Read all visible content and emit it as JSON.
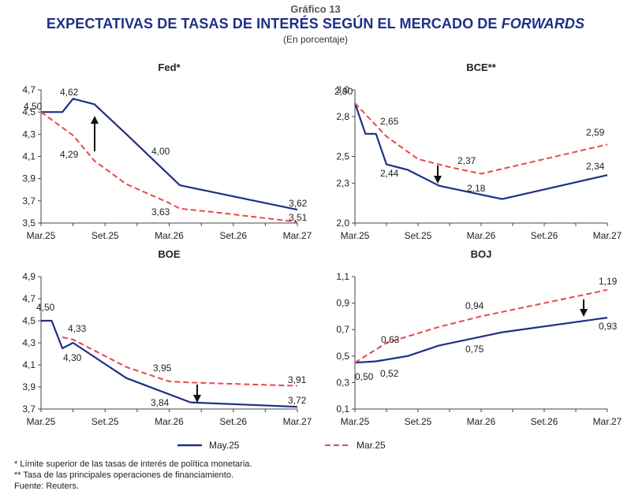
{
  "header": {
    "kicker": "Gráfico 13",
    "title_main": "EXPECTATIVAS DE TASAS DE INTERÉS SEGÚN EL MERCADO DE ",
    "title_italic": "FORWARDS",
    "subtitle": "(En porcentaje)"
  },
  "colors": {
    "may25": "#1f2f86",
    "mar25": "#e8474f",
    "axis": "#444444"
  },
  "legend": {
    "may25": "May.25",
    "mar25": "Mar.25"
  },
  "footnotes": {
    "note1": "* Límite superior de las tasas de interés de política monetaria.",
    "note2": "** Tasa de las principales operaciones de financiamiento.",
    "source": "Fuente: Reuters."
  },
  "chart_data": [
    {
      "type": "line",
      "title": "Fed*",
      "x_ticks": [
        "Mar.25",
        "Set.25",
        "Mar.26",
        "Set.26",
        "Mar.27"
      ],
      "x_range": [
        0,
        24
      ],
      "ylim": [
        3.5,
        4.7
      ],
      "y_ticks": [
        "3,5",
        "3,7",
        "3,9",
        "4,1",
        "4,3",
        "4,5",
        "4,7"
      ],
      "series": [
        {
          "name": "May.25",
          "x": [
            0,
            2,
            3,
            5,
            8,
            13,
            24
          ],
          "y": [
            4.5,
            4.5,
            4.62,
            4.57,
            4.3,
            3.84,
            3.62
          ]
        },
        {
          "name": "Mar.25",
          "x": [
            0,
            3,
            5,
            8,
            12,
            13,
            16,
            24
          ],
          "y": [
            4.5,
            4.29,
            4.06,
            3.85,
            3.68,
            3.63,
            3.6,
            3.51
          ]
        }
      ],
      "labels": [
        "4,50",
        "4,62",
        "4,29",
        "4,00",
        "3,62",
        "3,63",
        "3,51"
      ],
      "arrow": "up"
    },
    {
      "type": "line",
      "title": "BCE**",
      "x_ticks": [
        "Mar.25",
        "Set.25",
        "Mar.26",
        "Set.26",
        "Mar.27"
      ],
      "x_range": [
        0,
        24
      ],
      "ylim": [
        2.0,
        3.0
      ],
      "y_ticks": [
        "2,0",
        "2,3",
        "2,5",
        "2,8",
        "3,0"
      ],
      "series": [
        {
          "name": "May.25",
          "x": [
            0,
            1,
            2,
            3,
            5,
            8,
            14,
            24
          ],
          "y": [
            2.9,
            2.67,
            2.67,
            2.44,
            2.4,
            2.28,
            2.18,
            2.36
          ]
        },
        {
          "name": "Mar.25",
          "x": [
            0,
            3,
            6,
            9,
            12,
            24
          ],
          "y": [
            2.9,
            2.65,
            2.48,
            2.42,
            2.37,
            2.59
          ]
        }
      ],
      "labels": [
        "2,90",
        "2,65",
        "2,44",
        "2,37",
        "2,18",
        "2,59",
        "2,34"
      ],
      "arrow": "down"
    },
    {
      "type": "line",
      "title": "BOE",
      "x_ticks": [
        "Mar.25",
        "Set.25",
        "Mar.26",
        "Set.26",
        "Mar.27"
      ],
      "x_range": [
        0,
        24
      ],
      "ylim": [
        3.7,
        4.9
      ],
      "y_ticks": [
        "3,7",
        "3,9",
        "4,1",
        "4,3",
        "4,5",
        "4,7",
        "4,9"
      ],
      "series": [
        {
          "name": "May.25",
          "x": [
            0,
            1,
            2,
            3,
            8,
            14,
            24
          ],
          "y": [
            4.5,
            4.5,
            4.25,
            4.3,
            3.98,
            3.76,
            3.72
          ]
        },
        {
          "name": "Mar.25",
          "x": [
            2,
            3,
            8,
            12,
            14,
            24
          ],
          "y": [
            4.35,
            4.33,
            4.08,
            3.95,
            3.94,
            3.91
          ]
        }
      ],
      "labels": [
        "4,50",
        "4,33",
        "4,30",
        "3,95",
        "3,84",
        "3,91",
        "3,72"
      ],
      "arrow": "down"
    },
    {
      "type": "line",
      "title": "BOJ",
      "x_ticks": [
        "Mar.25",
        "Set.25",
        "Mar.26",
        "Set.26",
        "Mar.27"
      ],
      "x_range": [
        0,
        24
      ],
      "ylim": [
        0.1,
        1.1
      ],
      "y_ticks": [
        "0,1",
        "0,3",
        "0,5",
        "0,7",
        "0,9",
        "1,1"
      ],
      "series": [
        {
          "name": "May.25",
          "x": [
            0,
            2,
            5,
            8,
            14,
            24
          ],
          "y": [
            0.45,
            0.46,
            0.5,
            0.58,
            0.68,
            0.79
          ]
        },
        {
          "name": "Mar.25",
          "x": [
            0,
            3,
            8,
            12,
            24
          ],
          "y": [
            0.45,
            0.6,
            0.72,
            0.8,
            1.0
          ]
        }
      ],
      "labels": [
        "0,50",
        "0,52",
        "0,63",
        "0,75",
        "0,94",
        "1,19",
        "0,93"
      ],
      "arrow": "down"
    }
  ]
}
